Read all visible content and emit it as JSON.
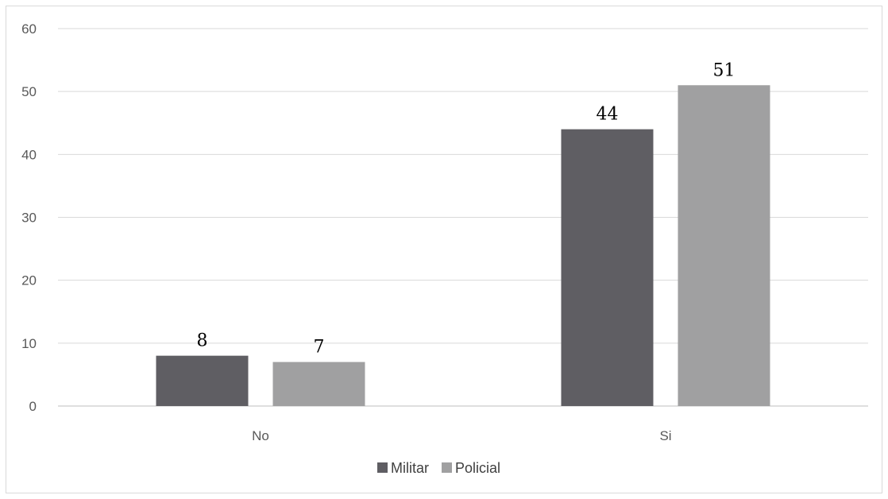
{
  "chart_data": {
    "type": "bar",
    "categories": [
      "No",
      "Si"
    ],
    "series": [
      {
        "name": "Militar",
        "values": [
          8,
          44
        ],
        "color": "#5f5e63"
      },
      {
        "name": "Policial",
        "values": [
          7,
          51
        ],
        "color": "#a0a0a1"
      }
    ],
    "ylim": [
      0,
      60
    ],
    "yticks": [
      0,
      10,
      20,
      30,
      40,
      50,
      60
    ],
    "grid": true,
    "gridline_color": "#d9d9d9",
    "legend_position": "bottom",
    "title": "",
    "xlabel": "",
    "ylabel": ""
  }
}
